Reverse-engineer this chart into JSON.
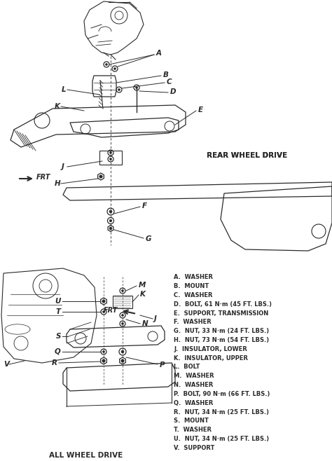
{
  "background_color": "#ffffff",
  "fig_width": 4.74,
  "fig_height": 6.58,
  "dpi": 100,
  "legend_items": [
    "A.  WASHER",
    "B.  MOUNT",
    "C.  WASHER",
    "D.  BOLT, 61 N·m (45 FT. LBS.)",
    "E.  SUPPORT, TRANSMISSION",
    "F.  WASHER",
    "G.  NUT, 33 N·m (24 FT. LBS.)",
    "H.  NUT, 73 N·m (54 FT. LBS.)",
    "J.  INSULATOR, LOWER",
    "K.  INSULATOR, UPPER",
    "L.  BOLT",
    "M.  WASHER",
    "N.  WASHER",
    "P.  BOLT, 90 N·m (66 FT. LBS.)",
    "Q.  WASHER",
    "R.  NUT, 34 N·m (25 FT. LBS.)",
    "S.  MOUNT",
    "T.  WASHER",
    "U.  NUT, 34 N·m (25 FT. LBS.)",
    "V.  SUPPORT"
  ],
  "section1_label": "REAR WHEEL DRIVE",
  "section2_label": "ALL WHEEL DRIVE",
  "line_color": "#2a2a2a",
  "label_fontsize": 6.0,
  "section_fontsize": 7.5,
  "part_label_fontsize": 7.5
}
